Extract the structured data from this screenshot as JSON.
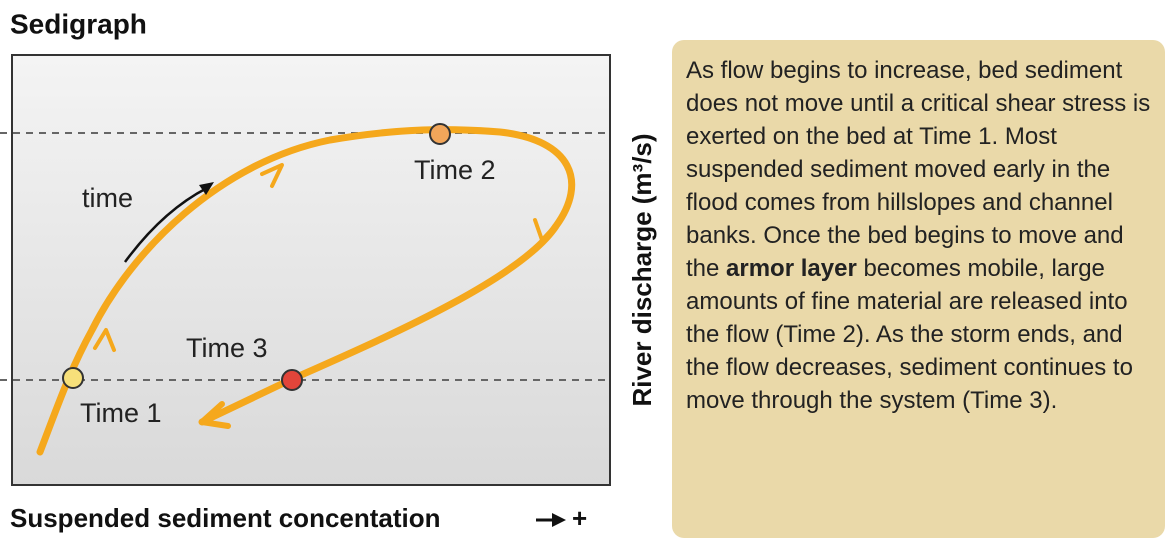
{
  "title": "Sedigraph",
  "y_axis_label": "River discharge (m³/s)",
  "x_axis_label": "Suspended sediment concentation",
  "x_axis_plus": "+",
  "labels": {
    "time": "time",
    "time1": "Time 1",
    "time2": "Time 2",
    "time3": "Time 3"
  },
  "note": {
    "before": "As flow begins to increase, bed sediment does not move until a critical shear stress is exerted on the bed at Time 1. Most suspended sediment moved early in the flood comes from hillslopes and channel banks. Once the bed begins to move and the ",
    "bold": "armor layer",
    "after": " becomes mobile, large amounts of fine material are released into the flow (Time 2). As the storm ends, and the flow decreases, sediment continues to move through the system (Time 3)."
  }
}
